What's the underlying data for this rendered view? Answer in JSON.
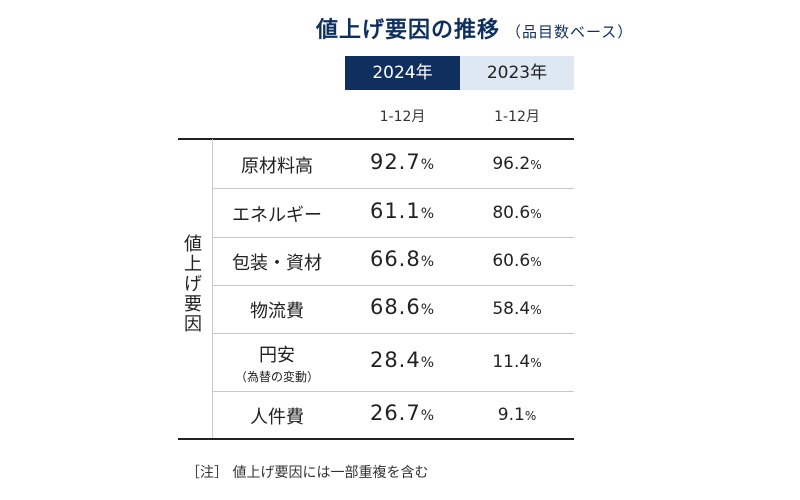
{
  "title": "値上げ要因の推移",
  "subtitle": "（品目数ベース）",
  "chart_data": {
    "type": "table",
    "group_label": "値上げ要因",
    "columns": [
      {
        "year": "2024年",
        "period": "1-12月"
      },
      {
        "year": "2023年",
        "period": "1-12月"
      }
    ],
    "unit": "%",
    "rows": [
      {
        "label": "原材料高",
        "note": "",
        "v2024": "92.7",
        "v2023": "96.2"
      },
      {
        "label": "エネルギー",
        "note": "",
        "v2024": "61.1",
        "v2023": "80.6"
      },
      {
        "label": "包装・資材",
        "note": "",
        "v2024": "66.8",
        "v2023": "60.6"
      },
      {
        "label": "物流費",
        "note": "",
        "v2024": "68.6",
        "v2023": "58.4"
      },
      {
        "label": "円安",
        "note": "（為替の変動）",
        "v2024": "28.4",
        "v2023": "11.4"
      },
      {
        "label": "人件費",
        "note": "",
        "v2024": "26.7",
        "v2023": "9.1"
      }
    ]
  },
  "footnote": "［注］ 値上げ要因には一部重複を含む",
  "colors": {
    "header_2024_bg": "#0f2f5f",
    "header_2023_bg": "#dde8f3",
    "title": "#0f2f5f"
  }
}
